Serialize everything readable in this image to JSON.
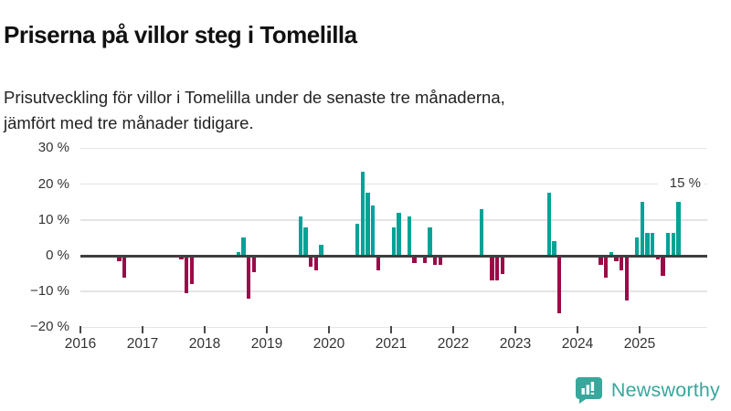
{
  "header": {
    "title": "Priserna på villor steg i Tomelilla",
    "subtitle_line1": "Prisutveckling för villor i Tomelilla under de senaste tre månaderna,",
    "subtitle_line2": "jämfört med tre månader tidigare."
  },
  "chart_data": {
    "type": "bar",
    "title": "Priserna på villor steg i Tomelilla",
    "ylabel": "",
    "xlabel": "",
    "unit": "%",
    "grid": "horizontal",
    "y_axis": {
      "range": [
        -22,
        32
      ],
      "ticks": [
        {
          "label": "30 %",
          "value": 30
        },
        {
          "label": "20 %",
          "value": 20
        },
        {
          "label": "10 %",
          "value": 10
        },
        {
          "label": "0 %",
          "value": 0
        },
        {
          "label": "−10 %",
          "value": -10
        },
        {
          "label": "−20 %",
          "value": -20
        }
      ]
    },
    "x_axis": {
      "range_years": [
        2016,
        2026
      ],
      "ticks": [
        "2016",
        "2017",
        "2018",
        "2019",
        "2020",
        "2021",
        "2022",
        "2023",
        "2024",
        "2025"
      ]
    },
    "annotation": {
      "text": "15 %",
      "value": 15,
      "date": "2025-08"
    },
    "colors": {
      "positive": "#00a396",
      "negative": "#9b0a48"
    },
    "bars": [
      {
        "date": "2016-08",
        "value": -1.5
      },
      {
        "date": "2016-09",
        "value": -6
      },
      {
        "date": "2017-08",
        "value": -1
      },
      {
        "date": "2017-09",
        "value": -10.5
      },
      {
        "date": "2017-10",
        "value": -8
      },
      {
        "date": "2018-07",
        "value": 1
      },
      {
        "date": "2018-08",
        "value": 5
      },
      {
        "date": "2018-09",
        "value": -12
      },
      {
        "date": "2018-10",
        "value": -4.5
      },
      {
        "date": "2019-07",
        "value": 11
      },
      {
        "date": "2019-08",
        "value": 8
      },
      {
        "date": "2019-09",
        "value": -3
      },
      {
        "date": "2019-10",
        "value": -4
      },
      {
        "date": "2019-11",
        "value": 3
      },
      {
        "date": "2020-06",
        "value": 9
      },
      {
        "date": "2020-07",
        "value": 23.5
      },
      {
        "date": "2020-08",
        "value": 17.5
      },
      {
        "date": "2020-09",
        "value": 14
      },
      {
        "date": "2020-10",
        "value": -4
      },
      {
        "date": "2021-01",
        "value": 8
      },
      {
        "date": "2021-02",
        "value": 12
      },
      {
        "date": "2021-04",
        "value": 11
      },
      {
        "date": "2021-05",
        "value": -2
      },
      {
        "date": "2021-07",
        "value": -2
      },
      {
        "date": "2021-08",
        "value": 8
      },
      {
        "date": "2021-09",
        "value": -2.5
      },
      {
        "date": "2021-10",
        "value": -2.5
      },
      {
        "date": "2022-06",
        "value": 13
      },
      {
        "date": "2022-08",
        "value": -7
      },
      {
        "date": "2022-09",
        "value": -7
      },
      {
        "date": "2022-10",
        "value": -5
      },
      {
        "date": "2023-07",
        "value": 17.5
      },
      {
        "date": "2023-08",
        "value": 4
      },
      {
        "date": "2023-09",
        "value": -16
      },
      {
        "date": "2024-05",
        "value": -2.5
      },
      {
        "date": "2024-06",
        "value": -6
      },
      {
        "date": "2024-07",
        "value": 1
      },
      {
        "date": "2024-08",
        "value": -1.5
      },
      {
        "date": "2024-09",
        "value": -4
      },
      {
        "date": "2024-10",
        "value": -12.5
      },
      {
        "date": "2024-12",
        "value": 5
      },
      {
        "date": "2025-01",
        "value": 15
      },
      {
        "date": "2025-02",
        "value": 6.5
      },
      {
        "date": "2025-03",
        "value": 6.5
      },
      {
        "date": "2025-04",
        "value": -1
      },
      {
        "date": "2025-05",
        "value": -5.5
      },
      {
        "date": "2025-06",
        "value": 6.5
      },
      {
        "date": "2025-07",
        "value": 6.5
      },
      {
        "date": "2025-08",
        "value": 15
      }
    ]
  },
  "footer": {
    "brand": "Newsworthy",
    "brand_color": "#38a79c"
  }
}
